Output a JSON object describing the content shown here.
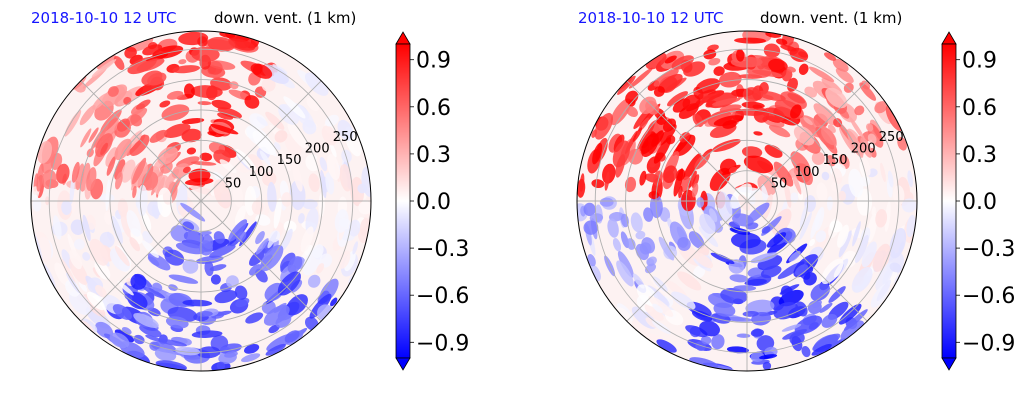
{
  "chart_data": [
    {
      "type": "heatmap",
      "projection": "polar",
      "title_left": "2018-10-10 12 UTC",
      "title_right": "down. vent. (1 km)",
      "radial_ticks": [
        "50",
        "100",
        "150",
        "200",
        "250"
      ],
      "radial_tick_values": [
        50,
        100,
        150,
        200,
        250
      ],
      "r_max": 280,
      "grid": true,
      "colormap": "bwr",
      "colorbar": {
        "ticks": [
          "0.9",
          "0.6",
          "0.3",
          "0.0",
          "−0.3",
          "−0.6",
          "−0.9"
        ],
        "tick_values": [
          0.9,
          0.6,
          0.3,
          0.0,
          -0.3,
          -0.6,
          -0.9
        ],
        "vmin": -1.0,
        "vmax": 1.0,
        "levels": 21,
        "extend": "both"
      },
      "pattern": {
        "positive_sectors": [
          [
            60,
            120,
            0.9
          ],
          [
            120,
            175,
            0.5
          ]
        ],
        "negative_sectors": [
          [
            230,
            330,
            0.7
          ]
        ],
        "rotation": 0
      }
    },
    {
      "type": "heatmap",
      "projection": "polar",
      "title_left": "2018-10-10 12 UTC",
      "title_right": "down. vent. (1 km)",
      "radial_ticks": [
        "50",
        "100",
        "150",
        "200",
        "250"
      ],
      "radial_tick_values": [
        50,
        100,
        150,
        200,
        250
      ],
      "r_max": 280,
      "grid": true,
      "colormap": "bwr",
      "colorbar": {
        "ticks": [
          "0.9",
          "0.6",
          "0.3",
          "0.0",
          "−0.3",
          "−0.6",
          "−0.9"
        ],
        "tick_values": [
          0.9,
          0.6,
          0.3,
          0.0,
          -0.3,
          -0.6,
          -0.9
        ],
        "vmin": -1.0,
        "vmax": 1.0,
        "levels": 21,
        "extend": "both"
      },
      "pattern": {
        "positive_sectors": [
          [
            80,
            200,
            0.9
          ],
          [
            40,
            80,
            0.5
          ]
        ],
        "negative_sectors": [
          [
            260,
            340,
            0.8
          ],
          [
            200,
            240,
            0.4
          ]
        ],
        "rotation": 20
      }
    }
  ],
  "colors": {
    "strong_positive": "#ff0000",
    "strong_negative": "#0000ff",
    "neutral": "#ffffff",
    "grid": "#b0b0b0",
    "title_left": "#1515ff"
  }
}
